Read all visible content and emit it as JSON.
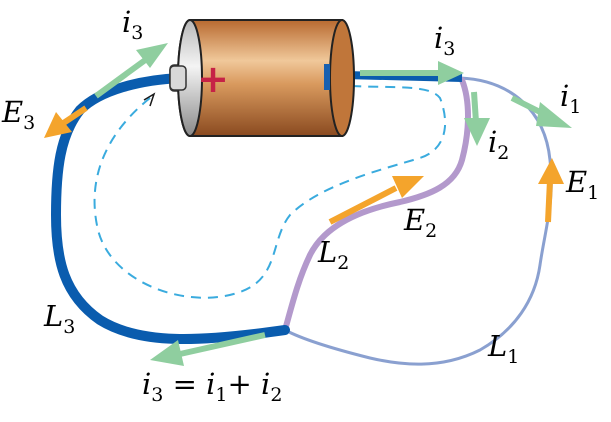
{
  "labels": {
    "i3_top_left": {
      "main": "i",
      "sub": "3"
    },
    "i3_top_right": {
      "main": "i",
      "sub": "3"
    },
    "i1": {
      "main": "i",
      "sub": "1"
    },
    "i2": {
      "main": "i",
      "sub": "2"
    },
    "E3": {
      "main": "E",
      "sub": "3"
    },
    "E1": {
      "main": "E",
      "sub": "1"
    },
    "E2": {
      "main": "E",
      "sub": "2"
    },
    "L2": {
      "main": "L",
      "sub": "2"
    },
    "L3": {
      "main": "L",
      "sub": "3"
    },
    "L1": {
      "main": "L",
      "sub": "1"
    },
    "junction_eq": {
      "a": "i",
      "a_sub": "3",
      "eq": " = ",
      "b": "i",
      "b_sub": "1",
      "plus": "+ ",
      "c": "i",
      "c_sub": "2"
    }
  },
  "battery": {
    "positive_symbol": "+",
    "negative_symbol": "–"
  },
  "colors": {
    "loop_L3": "#0a5cae",
    "loop_L2": "#b399cc",
    "loop_L1": "#8aa0d0",
    "current_arrow": "#8fce9f",
    "field_arrow": "#f4a42c",
    "dashed_path": "#3aabde",
    "battery_body": "#c87a3e",
    "battery_plus": "#c62246",
    "battery_minus": "#1860b0"
  }
}
